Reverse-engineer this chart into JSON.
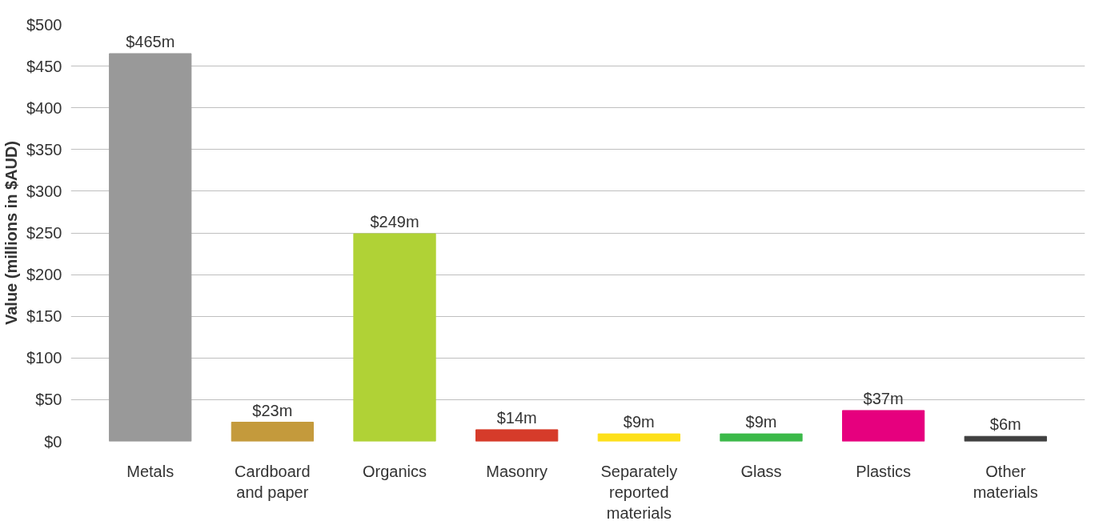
{
  "chart_data": {
    "type": "bar",
    "ylabel": "Value (millions in $AUD)",
    "categories": [
      "Metals",
      "Cardboard and paper",
      "Organics",
      "Masonry",
      "Separately reported materials",
      "Glass",
      "Plastics",
      "Other materials"
    ],
    "values": [
      465,
      23,
      249,
      14,
      9,
      9,
      37,
      6
    ],
    "colors": [
      "#999999",
      "#c49a3c",
      "#b0d236",
      "#d63b2a",
      "#fde01a",
      "#3cb94a",
      "#e6007e",
      "#404040"
    ],
    "value_labels": [
      "$465m",
      "$23m",
      "$249m",
      "$14m",
      "$9m",
      "$9m",
      "$37m",
      "$6m"
    ],
    "ylim": [
      0,
      500
    ],
    "yticks": [
      {
        "value": 0,
        "label": "$0"
      },
      {
        "value": 50,
        "label": "$50"
      },
      {
        "value": 100,
        "label": "$100"
      },
      {
        "value": 150,
        "label": "$150"
      },
      {
        "value": 200,
        "label": "$200"
      },
      {
        "value": 250,
        "label": "$250"
      },
      {
        "value": 300,
        "label": "$300"
      },
      {
        "value": 350,
        "label": "$350"
      },
      {
        "value": 400,
        "label": "$400"
      },
      {
        "value": 450,
        "label": "$450"
      },
      {
        "value": 500,
        "label": "$500"
      }
    ],
    "grid": "y"
  }
}
